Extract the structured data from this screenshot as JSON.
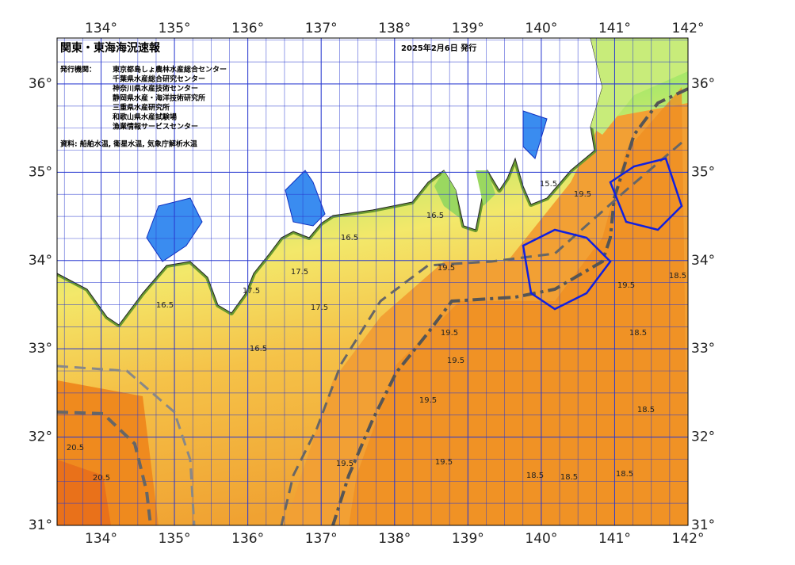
{
  "header": {
    "title": "関東・東海海況速報",
    "date": "2025年2月6日 発行"
  },
  "issuers": {
    "label": "発行機関：",
    "items": [
      "東京都島しょ農林水産総合センター",
      "千葉県水産総合研究センター",
      "神奈川県水産技術センター",
      "静岡県水産・海洋技術研究所",
      "三重県水産研究所",
      "和歌山県水産試験場",
      "漁業情報サービスセンター"
    ]
  },
  "source": "資料: 船舶水温, 衛星水温, 気象庁解析水温",
  "map": {
    "xlim": [
      133.4,
      142
    ],
    "ylim": [
      31,
      36.52
    ],
    "xticks": [
      {
        "value": 134,
        "label": "134°"
      },
      {
        "value": 135,
        "label": "135°"
      },
      {
        "value": 136,
        "label": "136°"
      },
      {
        "value": 137,
        "label": "137°"
      },
      {
        "value": 138,
        "label": "138°"
      },
      {
        "value": 139,
        "label": "139°"
      },
      {
        "value": 140,
        "label": "140°"
      },
      {
        "value": 141,
        "label": "141°"
      },
      {
        "value": 142,
        "label": "142°"
      }
    ],
    "yticks": [
      {
        "value": 31,
        "label": "31°"
      },
      {
        "value": 32,
        "label": "32°"
      },
      {
        "value": 33,
        "label": "33°"
      },
      {
        "value": 34,
        "label": "34°"
      },
      {
        "value": 35,
        "label": "35°"
      },
      {
        "value": 36,
        "label": "36°"
      }
    ],
    "contour_labels": [
      20.5,
      20.5,
      19.5,
      19.5,
      19.5,
      19.5,
      19.5,
      19.5,
      19.5,
      19.5,
      18.5,
      18.5,
      18.5,
      18.5,
      18.5,
      18.5,
      17.5,
      17.5,
      17.5,
      16.5,
      16.5,
      16.5,
      16.5,
      15.5
    ]
  }
}
